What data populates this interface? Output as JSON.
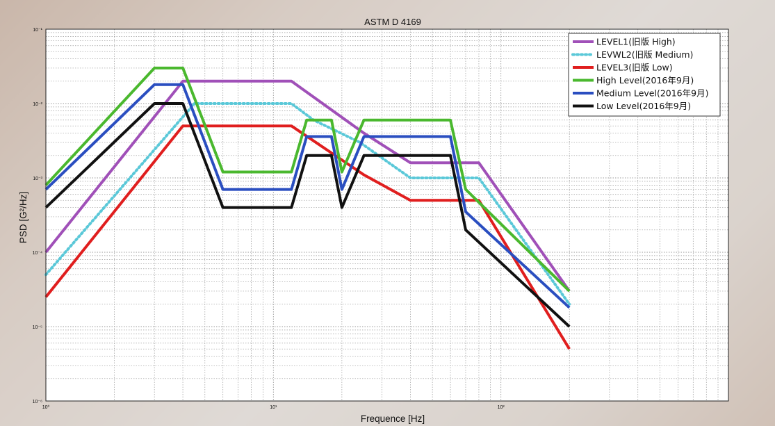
{
  "chart_data": {
    "type": "line",
    "title": "ASTM D 4169",
    "xlabel": "Frequence [Hz]",
    "ylabel": "PSD [G²/Hz]",
    "x_scale": "log",
    "y_scale": "log",
    "xlim": [
      1,
      1000
    ],
    "ylim": [
      1e-06,
      0.1
    ],
    "grid": true,
    "legend_position": "top-right",
    "x_tick_labels": [
      "10⁰",
      "10¹",
      "10²"
    ],
    "y_tick_labels": [
      "10⁻¹",
      "10⁻²",
      "10⁻³",
      "10⁻⁴",
      "10⁻⁵",
      "10⁻⁶"
    ],
    "series": [
      {
        "name": "LEVEL1(旧版 High)",
        "color": "#a050b8",
        "style": "solid",
        "points": [
          [
            1,
            0.0001
          ],
          [
            4,
            0.02
          ],
          [
            12,
            0.02
          ],
          [
            25,
            0.004
          ],
          [
            40,
            0.0016
          ],
          [
            80,
            0.0016
          ],
          [
            200,
            3e-05
          ]
        ]
      },
      {
        "name": "LEVWL2(旧版 Medium)",
        "color": "#5ac8d8",
        "style": "dotted",
        "points": [
          [
            1,
            5e-05
          ],
          [
            4.5,
            0.01
          ],
          [
            12,
            0.01
          ],
          [
            15,
            0.006
          ],
          [
            24,
            0.003
          ],
          [
            40,
            0.001
          ],
          [
            80,
            0.001
          ],
          [
            200,
            2e-05
          ]
        ]
      },
      {
        "name": "LEVEL3(旧版 Low)",
        "color": "#e01e1e",
        "style": "solid",
        "points": [
          [
            1,
            2.5e-05
          ],
          [
            4,
            0.005
          ],
          [
            12,
            0.005
          ],
          [
            25,
            0.0011
          ],
          [
            40,
            0.0005
          ],
          [
            80,
            0.0005
          ],
          [
            200,
            5e-06
          ]
        ]
      },
      {
        "name": "High Level(2016年9月)",
        "color": "#4ab82e",
        "style": "solid",
        "points": [
          [
            1,
            0.0008
          ],
          [
            3,
            0.03
          ],
          [
            4,
            0.03
          ],
          [
            6,
            0.0012
          ],
          [
            12,
            0.0012
          ],
          [
            14,
            0.006
          ],
          [
            18,
            0.006
          ],
          [
            20,
            0.0012
          ],
          [
            25,
            0.006
          ],
          [
            60,
            0.006
          ],
          [
            70,
            0.0007
          ],
          [
            200,
            3e-05
          ]
        ]
      },
      {
        "name": "Medium Level(2016年9月)",
        "color": "#2a4ec0",
        "style": "solid",
        "points": [
          [
            1,
            0.0007
          ],
          [
            3,
            0.018
          ],
          [
            4,
            0.018
          ],
          [
            6,
            0.0007
          ],
          [
            12,
            0.0007
          ],
          [
            14,
            0.0036
          ],
          [
            18,
            0.0036
          ],
          [
            20,
            0.0007
          ],
          [
            25,
            0.0036
          ],
          [
            60,
            0.0036
          ],
          [
            70,
            0.00035
          ],
          [
            200,
            1.8e-05
          ]
        ]
      },
      {
        "name": "Low Level(2016年9月)",
        "color": "#111111",
        "style": "solid",
        "points": [
          [
            1,
            0.0004
          ],
          [
            3,
            0.01
          ],
          [
            4,
            0.01
          ],
          [
            6,
            0.0004
          ],
          [
            12,
            0.0004
          ],
          [
            14,
            0.002
          ],
          [
            18,
            0.002
          ],
          [
            20,
            0.0004
          ],
          [
            25,
            0.002
          ],
          [
            60,
            0.002
          ],
          [
            70,
            0.0002
          ],
          [
            200,
            1e-05
          ]
        ]
      }
    ]
  }
}
